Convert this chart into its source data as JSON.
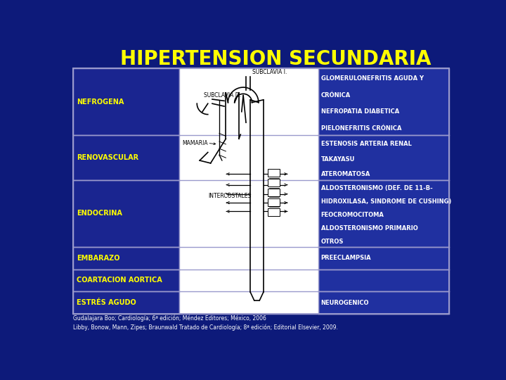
{
  "title": "HIPERTENSION SECUNDARIA",
  "title_color": "#FFFF00",
  "title_fontsize": 20,
  "bg_color": "#0d1a7a",
  "cell_bg_dark": "#1a2590",
  "cell_bg_medium": "#2030a0",
  "cell_border": "#9999cc",
  "text_color": "#FFFF00",
  "right_text_color": "#FFFFFF",
  "footer": "Gudalajara Boo; Cardiología; 6ª edición; Méndez Editores; México, 2006\nLibby, Bonow, Mann, Zipes; Braunwald Tratado de Cardiología; 8ª edición; Editorial Elsevier, 2009.",
  "left_column": [
    {
      "label": "NEFROGENA",
      "units": 3
    },
    {
      "label": "RENOVASCULAR",
      "units": 2
    },
    {
      "label": "ENDOCRINA",
      "units": 3
    },
    {
      "label": "EMBARAZO",
      "units": 1
    },
    {
      "label": "COARTACION AORTICA",
      "units": 1
    },
    {
      "label": "ESTRÉS AGUDO",
      "units": 1
    }
  ],
  "right_column": [
    {
      "lines": [
        "GLOMERULONEFRITIS AGUDA Y",
        "CRÓNICA",
        "NEFROPATIA DIABETICA",
        "PIELONEFRITIS CRÓNICA"
      ],
      "units": 3
    },
    {
      "lines": [
        "ESTENOSIS ARTERIA RENAL",
        "TAKAYASU",
        "ATEROMATOSA"
      ],
      "units": 2
    },
    {
      "lines": [
        "ALDOSTERONISMO (DEF. DE 11-B-",
        "HIDROXILASA, SINDROME DE CUSHING)",
        "FEOCROMOCITOMA",
        "ALDOSTERONISMO PRIMARIO",
        "OTROS"
      ],
      "units": 3
    },
    {
      "lines": [
        "PREECLAMPSIA"
      ],
      "units": 1
    },
    {
      "lines": [
        ""
      ],
      "units": 1
    },
    {
      "lines": [
        "NEUROGENICO"
      ],
      "units": 1
    }
  ]
}
